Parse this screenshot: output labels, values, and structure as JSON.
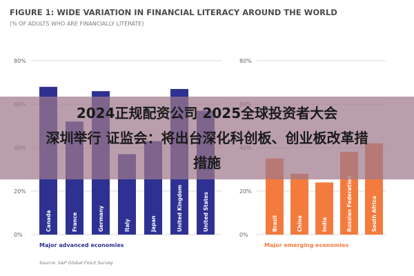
{
  "colors": {
    "advanced": "#2e3192",
    "emerging": "#f47b3e",
    "grid": "#d9d9d9",
    "title": "#4a4a4a"
  },
  "chart_data": [
    {
      "type": "bar",
      "title": "FIGURE 1: WIDE VARIATION IN FINANCIAL LITERACY AROUND THE WORLD",
      "subtitle": "(% OF ADULTS WHO ARE FINANCIALLY LITERATE)",
      "group_label": "Major advanced economies",
      "categories": [
        "Canada",
        "France",
        "Germany",
        "Italy",
        "Japan",
        "United Kingdom",
        "United States"
      ],
      "values": [
        68,
        52,
        66,
        37,
        43,
        67,
        57
      ],
      "ylim": [
        0,
        80
      ],
      "yticks": [
        "0%",
        "20%",
        "40%",
        "60%",
        "80%"
      ],
      "grid": true
    },
    {
      "type": "bar",
      "group_label": "Major emerging economies",
      "categories": [
        "Brazil",
        "China",
        "India",
        "Russian Federation",
        "South Africa"
      ],
      "values": [
        35,
        28,
        24,
        38,
        42
      ],
      "ylim": [
        0,
        80
      ],
      "yticks": [
        "0%",
        "20%",
        "40%",
        "60%",
        "80%"
      ],
      "grid": true
    }
  ],
  "source": "Source: S&P Global FinLit Survey",
  "overlay": {
    "line1": "2024正规配资公司   2025全球投资者大会",
    "line2": "深圳举行 证监会：将出台深化科创板、创业板改革措",
    "line3": "措施"
  }
}
